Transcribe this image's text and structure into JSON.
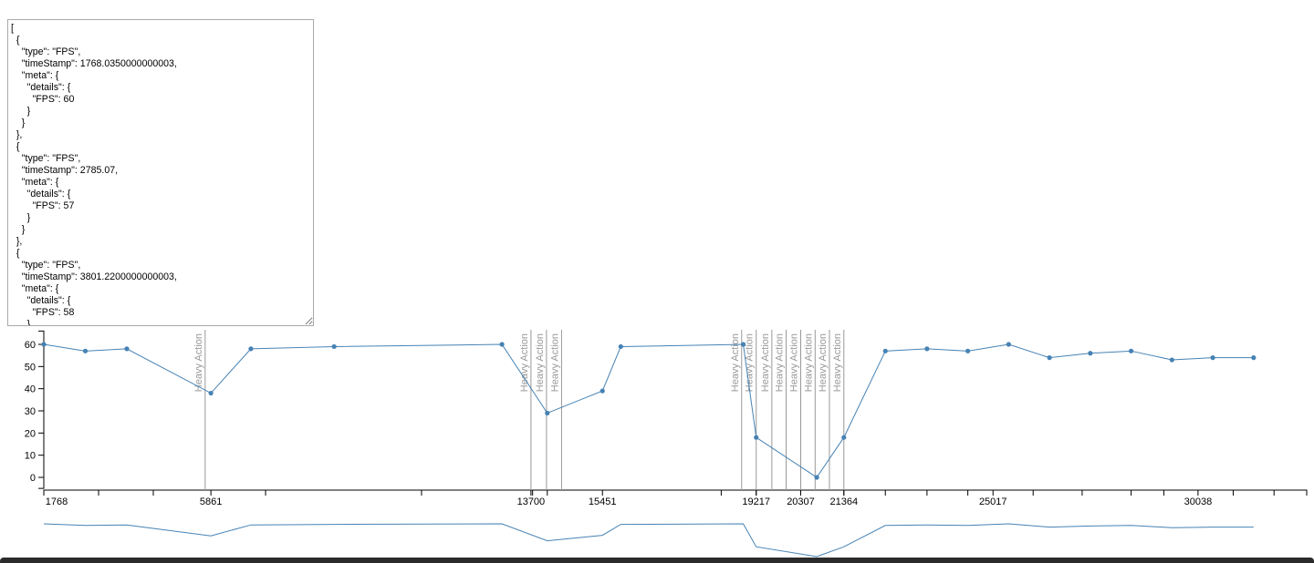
{
  "editor": {
    "json_text": "[\n  {\n    \"type\": \"FPS\",\n    \"timeStamp\": 1768.0350000000003,\n    \"meta\": {\n      \"details\": {\n        \"FPS\": 60\n      }\n    }\n  },\n  {\n    \"type\": \"FPS\",\n    \"timeStamp\": 2785.07,\n    \"meta\": {\n      \"details\": {\n        \"FPS\": 57\n      }\n    }\n  },\n  {\n    \"type\": \"FPS\",\n    \"timeStamp\": 3801.2200000000003,\n    \"meta\": {\n      \"details\": {\n        \"FPS\": 58\n      }\n    }\n  },"
  },
  "chart_data": {
    "type": "line",
    "title": "",
    "xlabel": "",
    "ylabel": "",
    "x": [
      1768,
      2785,
      3801,
      5861,
      6840,
      8879,
      12990,
      14100,
      15451,
      15900,
      18900,
      19217,
      20700,
      21364,
      22380,
      23400,
      24400,
      25400,
      26400,
      27400,
      28400,
      29400,
      30400,
      31400
    ],
    "y": [
      60,
      57,
      58,
      38,
      58,
      59,
      60,
      29,
      39,
      59,
      60,
      18,
      0,
      18,
      57,
      58,
      57,
      60,
      54,
      56,
      57,
      53,
      54,
      54
    ],
    "xlim": [
      1768,
      32700
    ],
    "ylim": [
      -5,
      66
    ],
    "y_ticks": [
      0,
      10,
      20,
      30,
      40,
      50,
      60
    ],
    "x_tick_labels": [
      "1768",
      "5861",
      "13700",
      "15451",
      "19217",
      "20307",
      "21364",
      "25017",
      "30038"
    ],
    "x_tick_values": [
      1768,
      5861,
      13700,
      15451,
      19217,
      20307,
      21364,
      25017,
      30038
    ],
    "x_minor_ticks": [
      3110,
      4450,
      7200,
      11020,
      13740,
      14100,
      18360,
      19217,
      20307,
      21364,
      22380,
      23400,
      24400,
      26000,
      27200,
      28400,
      29200,
      30900,
      31900,
      32700
    ],
    "annotations": [
      {
        "x": 5720,
        "label": "Heavy Action"
      },
      {
        "x": 13700,
        "label": "Heavy Action"
      },
      {
        "x": 14080,
        "label": "Heavy Action"
      },
      {
        "x": 14450,
        "label": "Heavy Action"
      },
      {
        "x": 18860,
        "label": "Heavy Action"
      },
      {
        "x": 19217,
        "label": "Heavy Action"
      },
      {
        "x": 19600,
        "label": "Heavy Action"
      },
      {
        "x": 19950,
        "label": "Heavy Action"
      },
      {
        "x": 20307,
        "label": "Heavy Action"
      },
      {
        "x": 20660,
        "label": "Heavy Action"
      },
      {
        "x": 21010,
        "label": "Heavy Action"
      },
      {
        "x": 21364,
        "label": "Heavy Action"
      }
    ],
    "grid": false,
    "line_color": "#4682b4",
    "annotation_color": "#999999"
  }
}
